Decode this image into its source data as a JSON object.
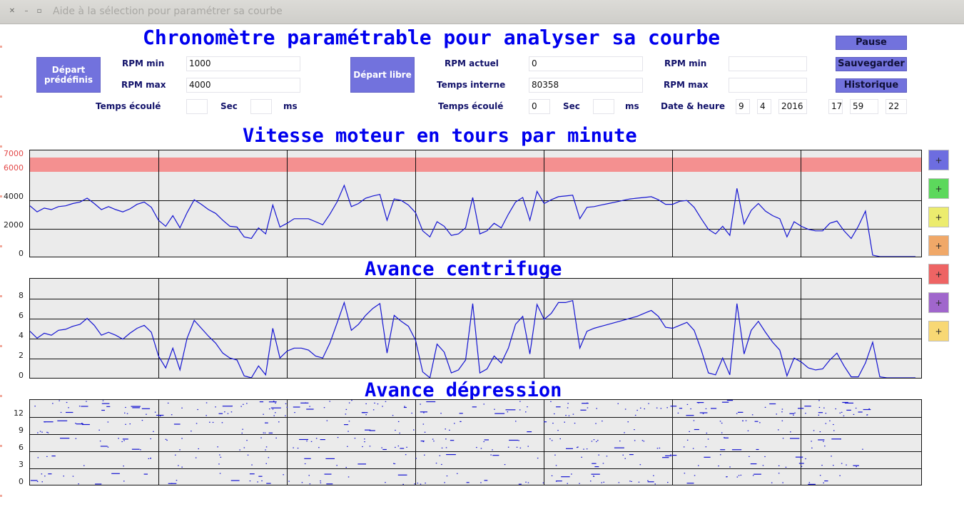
{
  "window": {
    "title": "Aide à la sélection pour paramétrer sa courbe"
  },
  "header": {
    "title": "Chronomètre paramétrable pour analyser sa courbe",
    "btn_depart_predef": "Départ prédéfinis",
    "btn_depart_libre": "Départ libre",
    "left": {
      "rpm_min_label": "RPM min",
      "rpm_min_value": "1000",
      "rpm_max_label": "RPM max",
      "rpm_max_value": "4000",
      "temps_label": "Temps écoulé",
      "temps_value": "",
      "sec_label": "Sec",
      "sec_value": "",
      "ms_label": "ms"
    },
    "middle": {
      "rpm_actuel_label": "RPM actuel",
      "rpm_actuel_value": "0",
      "temps_interne_label": "Temps interne",
      "temps_interne_value": "80358",
      "temps_label": "Temps écoulé",
      "temps_value": "0",
      "sec_label": "Sec",
      "sec_value": "",
      "ms_label": "ms"
    },
    "right": {
      "rpm_min_label": "RPM min",
      "rpm_min_value": "",
      "rpm_max_label": "RPM max",
      "rpm_max_value": "",
      "date_label": "Date & heure",
      "day": "9",
      "month": "4",
      "year": "2016",
      "hour": "17",
      "minute": "59",
      "second": "22"
    },
    "btn_pause": "Pause",
    "btn_save": "Sauvegarder",
    "btn_history": "Historique"
  },
  "color_buttons": [
    {
      "label": "+",
      "color": "#6d6de0"
    },
    {
      "label": "+",
      "color": "#5cd85c"
    },
    {
      "label": "+",
      "color": "#ecec6e"
    },
    {
      "label": "+",
      "color": "#f0a868"
    },
    {
      "label": "+",
      "color": "#ee6464"
    },
    {
      "label": "+",
      "color": "#a066cc"
    },
    {
      "label": "+",
      "color": "#f8d874"
    }
  ],
  "colors": {
    "title": "#0000ee",
    "trace": "#1414d2",
    "grid": "#111111",
    "chart_bg": "#ebebeb",
    "rpm_band": "#f49090",
    "accent_button": "#7272dd"
  },
  "chart_data": [
    {
      "type": "line",
      "title": "Vitesse moteur en tours par minute",
      "ylim": [
        0,
        7000
      ],
      "yticks": [
        "7000",
        "6000",
        "4000",
        "2000",
        "0"
      ],
      "highlight_band": [
        6000,
        7000
      ],
      "x": [
        0,
        10,
        20,
        30,
        40,
        50,
        60,
        70,
        80,
        90,
        100,
        110,
        120,
        130,
        140,
        150,
        160,
        170,
        180,
        190,
        200,
        210,
        220,
        230,
        240,
        250,
        260,
        270,
        280,
        290,
        300,
        310,
        320,
        330,
        340,
        350,
        360,
        370,
        380,
        390,
        400,
        410,
        420,
        430,
        440,
        450,
        460,
        470,
        480,
        490,
        500,
        510,
        520,
        530,
        540,
        550,
        560,
        570,
        580,
        590,
        600,
        610,
        620,
        630,
        640,
        650,
        660,
        670,
        680,
        690,
        700,
        710,
        720,
        730,
        740,
        750,
        760,
        770,
        780,
        790,
        800,
        810,
        820,
        830,
        840,
        850,
        860,
        870,
        880,
        890,
        900,
        910,
        920,
        930,
        940,
        950,
        960,
        970,
        980,
        990,
        1000,
        1010,
        1020,
        1030,
        1040,
        1050,
        1060,
        1070,
        1080,
        1090,
        1100,
        1110,
        1120,
        1130,
        1140,
        1150,
        1160,
        1170,
        1180,
        1190,
        1200,
        1210,
        1220,
        1230,
        1240
      ],
      "series": [
        {
          "values": [
            3350,
            2950,
            3200,
            3100,
            3300,
            3350,
            3500,
            3600,
            3850,
            3500,
            3100,
            3300,
            3100,
            2950,
            3150,
            3450,
            3600,
            3250,
            2400,
            2000,
            2700,
            1900,
            2900,
            3750,
            3450,
            3100,
            2850,
            2400,
            2000,
            1950,
            1300,
            1200,
            1900,
            1500,
            3400,
            1950,
            2200,
            2500,
            2500,
            2500,
            2300,
            2100,
            2800,
            3600,
            4700,
            3300,
            3500,
            3850,
            4000,
            4100,
            2400,
            3800,
            3700,
            3400,
            2900,
            1700,
            1300,
            2300,
            2000,
            1400,
            1500,
            1900,
            3900,
            1500,
            1700,
            2200,
            1900,
            2800,
            3600,
            3900,
            2400,
            4300,
            3500,
            3750,
            3950,
            4000,
            4050,
            2500,
            3250,
            3300,
            3400,
            3500,
            3600,
            3700,
            3800,
            3850,
            3900,
            3950,
            3750,
            3450,
            3450,
            3650,
            3700,
            3250,
            2500,
            1800,
            1500,
            2000,
            1400,
            4500,
            2150,
            3050,
            3500,
            3000,
            2700,
            2500,
            1300,
            2300,
            2000,
            1800,
            1700,
            1700,
            2200,
            2350,
            1700,
            1200,
            2000,
            3000,
            100,
            0,
            0,
            0,
            0,
            0,
            0
          ]
        }
      ]
    },
    {
      "type": "line",
      "title": "Avance centrifuge",
      "ylim": [
        0,
        10
      ],
      "yticks": [
        "8",
        "6",
        "4",
        "2",
        "0"
      ],
      "x": [
        0,
        10,
        20,
        30,
        40,
        50,
        60,
        70,
        80,
        90,
        100,
        110,
        120,
        130,
        140,
        150,
        160,
        170,
        180,
        190,
        200,
        210,
        220,
        230,
        240,
        250,
        260,
        270,
        280,
        290,
        300,
        310,
        320,
        330,
        340,
        350,
        360,
        370,
        380,
        390,
        400,
        410,
        420,
        430,
        440,
        450,
        460,
        470,
        480,
        490,
        500,
        510,
        520,
        530,
        540,
        550,
        560,
        570,
        580,
        590,
        600,
        610,
        620,
        630,
        640,
        650,
        660,
        670,
        680,
        690,
        700,
        710,
        720,
        730,
        740,
        750,
        760,
        770,
        780,
        790,
        800,
        810,
        820,
        830,
        840,
        850,
        860,
        870,
        880,
        890,
        900,
        910,
        920,
        930,
        940,
        950,
        960,
        970,
        980,
        990,
        1000,
        1010,
        1020,
        1030,
        1040,
        1050,
        1060,
        1070,
        1080,
        1090,
        1100,
        1110,
        1120,
        1130,
        1140,
        1150,
        1160,
        1170,
        1180,
        1190,
        1200,
        1210,
        1220,
        1230,
        1240
      ],
      "series": [
        {
          "values": [
            4.7,
            4.0,
            4.5,
            4.3,
            4.8,
            4.9,
            5.2,
            5.4,
            6.0,
            5.3,
            4.3,
            4.6,
            4.3,
            3.9,
            4.5,
            5.0,
            5.3,
            4.6,
            2.2,
            1.0,
            3.0,
            0.8,
            4.0,
            5.8,
            5.0,
            4.2,
            3.5,
            2.5,
            2.0,
            1.8,
            0.2,
            0.0,
            1.2,
            0.3,
            5.0,
            2.0,
            2.7,
            3.0,
            3.0,
            2.8,
            2.2,
            2.0,
            3.5,
            5.5,
            7.6,
            4.8,
            5.4,
            6.3,
            7.0,
            7.5,
            2.5,
            6.3,
            5.7,
            5.2,
            3.8,
            0.6,
            0.0,
            3.4,
            2.6,
            0.5,
            0.8,
            1.8,
            7.5,
            0.5,
            0.9,
            2.2,
            1.5,
            3.0,
            5.4,
            6.2,
            2.4,
            7.4,
            5.9,
            6.5,
            7.6,
            7.6,
            7.8,
            3.0,
            4.7,
            5.0,
            5.2,
            5.4,
            5.6,
            5.8,
            6.0,
            6.2,
            6.5,
            6.8,
            6.2,
            5.1,
            5.0,
            5.3,
            5.6,
            4.8,
            2.8,
            0.5,
            0.3,
            2.0,
            0.3,
            7.5,
            2.4,
            4.8,
            5.7,
            4.6,
            3.6,
            2.8,
            0.2,
            2.0,
            1.6,
            1.0,
            0.8,
            0.9,
            1.8,
            2.5,
            1.2,
            0.1,
            0.1,
            1.5,
            3.6,
            0.1,
            0.0,
            0.0,
            0.0,
            0.0,
            0.0
          ]
        }
      ]
    },
    {
      "type": "scatter",
      "title": "Avance dépression",
      "ylim": [
        0,
        15
      ],
      "yticks": [
        "12",
        "9",
        "6",
        "3",
        "0"
      ]
    }
  ]
}
